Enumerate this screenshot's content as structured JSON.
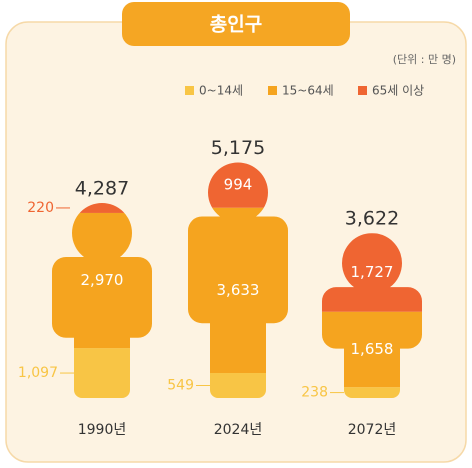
{
  "chart_data": {
    "type": "pictogram",
    "title": "총인구",
    "unit": "(단위 : 만 명)",
    "categories": [
      "1990년",
      "2024년",
      "2072년"
    ],
    "series": [
      {
        "name": "0~14세",
        "color": "#f8c545",
        "values": [
          1097,
          549,
          238
        ],
        "value_labels": [
          "1,097",
          "549",
          "238"
        ]
      },
      {
        "name": "15~64세",
        "color": "#f5a41f",
        "values": [
          2970,
          3633,
          1658
        ],
        "value_labels": [
          "2,970",
          "3,633",
          "1,658"
        ]
      },
      {
        "name": "65세 이상",
        "color": "#ef6532",
        "values": [
          220,
          994,
          1727
        ],
        "value_labels": [
          "220",
          "994",
          "1,727"
        ]
      }
    ],
    "totals": {
      "values": [
        4287,
        5175,
        3622
      ],
      "value_labels": [
        "4,287",
        "5,175",
        "3,622"
      ]
    }
  }
}
